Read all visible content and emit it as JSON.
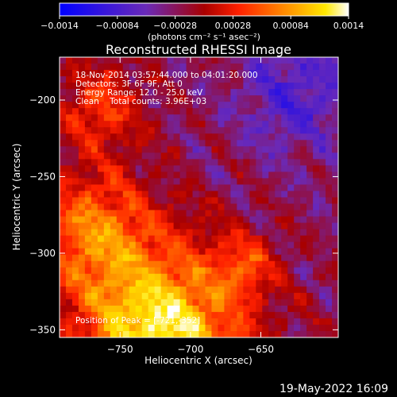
{
  "chart_data": {
    "type": "heatmap",
    "title": "Reconstructed RHESSI Image",
    "xlabel": "Heliocentric X (arcsec)",
    "ylabel": "Heliocentric Y (arcsec)",
    "xlim": [
      -793,
      -595
    ],
    "ylim": [
      -355,
      -172
    ],
    "xticks": [
      -750,
      -700,
      -650
    ],
    "xtick_labels": [
      "−750",
      "−700",
      "−650"
    ],
    "yticks": [
      -200,
      -250,
      -300,
      -350
    ],
    "ytick_labels": [
      "−200",
      "−250",
      "−300",
      "−350"
    ],
    "grid": false,
    "colorbar": {
      "position": "top",
      "range": [
        -0.0014,
        0.0014
      ],
      "ticks": [
        -0.0014,
        -0.00084,
        -0.00028,
        0.00028,
        0.00084,
        0.0014
      ],
      "tick_labels": [
        "−0.0014",
        "−0.00084",
        "−0.00028",
        "0.00028",
        "0.00084",
        "0.0014"
      ],
      "unit_label": "(photons cm⁻² s⁻¹ asec⁻²)",
      "colormap": [
        "#0000ff",
        "#6a2ab8",
        "#a80000",
        "#ff2000",
        "#ff8c00",
        "#ffe800",
        "#ffffff"
      ]
    },
    "annotations": [
      "18-Nov-2014 03:57:44.000 to 04:01:20.000",
      "Detectors: 3F 6F 9F, Att 0",
      "Energy Range: 12.0 - 25.0 keV",
      "Clean    Total counts: 3.96E+03"
    ],
    "peak_label": "Position of Peak = [-721,-352]",
    "peak": [
      -721,
      -352
    ]
  },
  "footer": {
    "timestamp": "19-May-2022 16:09"
  }
}
